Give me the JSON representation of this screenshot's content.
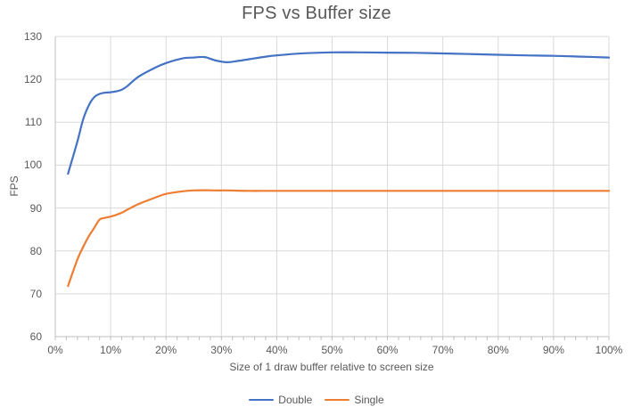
{
  "chart_data": {
    "type": "line",
    "title": "FPS vs Buffer size",
    "xlabel": "Size of 1 draw buffer relative to screen size",
    "ylabel": "FPS",
    "xlim": [
      0,
      100
    ],
    "ylim": [
      60,
      130
    ],
    "grid": true,
    "smooth_lines": true,
    "legend_position": "bottom",
    "x_ticks": [
      0,
      10,
      20,
      30,
      40,
      50,
      60,
      70,
      80,
      90,
      100
    ],
    "x_tick_labels": [
      "0%",
      "10%",
      "20%",
      "30%",
      "40%",
      "50%",
      "60%",
      "70%",
      "80%",
      "90%",
      "100%"
    ],
    "x_minor_tick_step": 2,
    "y_ticks": [
      60,
      70,
      80,
      90,
      100,
      110,
      120,
      130
    ],
    "x": [
      2.3,
      4,
      5,
      6,
      7,
      8,
      9,
      10,
      11,
      12,
      13,
      15,
      18,
      20,
      23,
      25,
      27,
      29,
      31,
      33,
      35,
      38,
      40,
      45,
      50,
      55,
      60,
      65,
      70,
      75,
      80,
      85,
      90,
      95,
      100
    ],
    "series": [
      {
        "name": "Double",
        "color": "#4472C4",
        "values": [
          98,
          105.5,
          110.5,
          113.8,
          115.8,
          116.6,
          116.9,
          117,
          117.2,
          117.6,
          118.4,
          120.6,
          122.7,
          123.8,
          124.9,
          125.1,
          125.2,
          124.4,
          124,
          124.3,
          124.7,
          125.3,
          125.6,
          126.1,
          126.3,
          126.3,
          126.25,
          126.2,
          126.05,
          125.9,
          125.75,
          125.6,
          125.5,
          125.3,
          125.1
        ]
      },
      {
        "name": "Single",
        "color": "#ED7D31",
        "values": [
          71.8,
          78,
          80.8,
          83.3,
          85.3,
          87.3,
          87.7,
          88,
          88.4,
          88.9,
          89.6,
          90.9,
          92.4,
          93.3,
          93.9,
          94.1,
          94.15,
          94.1,
          94.1,
          94.05,
          94,
          94,
          94,
          94,
          94,
          94,
          94,
          94,
          94,
          94,
          94,
          94,
          94,
          94,
          94
        ]
      }
    ]
  },
  "colors": {
    "series_double": "#4472C4",
    "series_single": "#ED7D31",
    "gridline": "#D9D9D9",
    "axis": "#BFBFBF",
    "text": "#595959"
  }
}
